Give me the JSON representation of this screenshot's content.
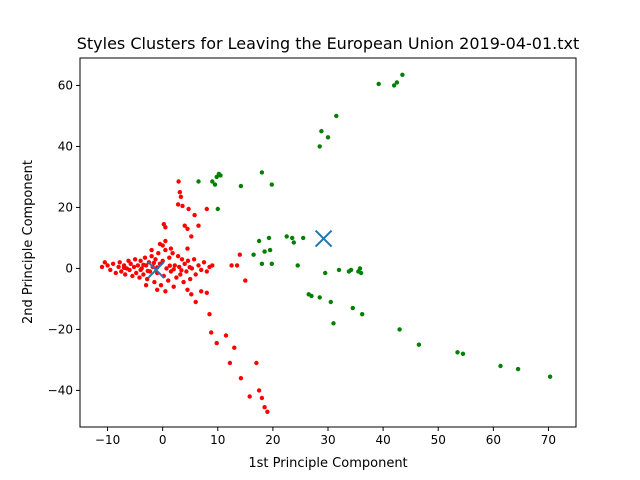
{
  "chart_data": {
    "type": "scatter",
    "title": "Styles Clusters for Leaving the European Union 2019-04-01.txt",
    "xlabel": "1st Principle Component",
    "ylabel": "2nd Principle Component",
    "xlim": [
      -15,
      75
    ],
    "ylim": [
      -52,
      69
    ],
    "xticks": [
      -10,
      0,
      10,
      20,
      30,
      40,
      50,
      60,
      70
    ],
    "yticks": [
      -40,
      -20,
      0,
      20,
      40,
      60
    ],
    "grid": false,
    "legend": "none",
    "colors": {
      "cluster1": "#ff0000",
      "cluster2": "#008000",
      "centroid": "#1f77b4"
    },
    "series": [
      {
        "color": "#ff0000",
        "points": [
          [
            -11,
            0.5
          ],
          [
            -10.5,
            2
          ],
          [
            -10,
            1
          ],
          [
            -9.5,
            -0.5
          ],
          [
            -9,
            1.5
          ],
          [
            -8.5,
            -1.5
          ],
          [
            -8,
            0.5
          ],
          [
            -7.8,
            2
          ],
          [
            -7.5,
            -1
          ],
          [
            -7,
            1
          ],
          [
            -6.8,
            -2
          ],
          [
            -6.5,
            0
          ],
          [
            -6.2,
            2.5
          ],
          [
            -6,
            -0.5
          ],
          [
            -5.8,
            1.5
          ],
          [
            -5.5,
            -2.5
          ],
          [
            -5.2,
            0.5
          ],
          [
            -5,
            3
          ],
          [
            -4.8,
            -1.5
          ],
          [
            -4.5,
            1
          ],
          [
            -4.2,
            -3
          ],
          [
            -4,
            2.5
          ],
          [
            -3.8,
            0
          ],
          [
            -3.5,
            -2
          ],
          [
            -3.2,
            3.5
          ],
          [
            -3,
            1
          ],
          [
            -2.8,
            -3.5
          ],
          [
            -2.5,
            2
          ],
          [
            -2.3,
            -1
          ],
          [
            -2,
            4
          ],
          [
            -1.8,
            0.5
          ],
          [
            -1.5,
            -4.5
          ],
          [
            -1.3,
            3
          ],
          [
            -1,
            -1.5
          ],
          [
            -0.8,
            5
          ],
          [
            -0.5,
            1.5
          ],
          [
            -0.3,
            -5.5
          ],
          [
            0,
            2.5
          ],
          [
            0.2,
            -2.5
          ],
          [
            0.5,
            6
          ],
          [
            0.7,
            0
          ],
          [
            1,
            -4
          ],
          [
            1.2,
            3.5
          ],
          [
            1.5,
            -1
          ],
          [
            1.8,
            5
          ],
          [
            2,
            -6
          ],
          [
            2.2,
            1
          ],
          [
            2.5,
            -3
          ],
          [
            2.8,
            4
          ],
          [
            3,
            0.5
          ],
          [
            3.2,
            -2
          ],
          [
            3.5,
            3
          ],
          [
            3.8,
            -4.5
          ],
          [
            4,
            1.5
          ],
          [
            4.3,
            -1
          ],
          [
            4.6,
            2.5
          ],
          [
            5,
            -3.5
          ],
          [
            5.3,
            0
          ],
          [
            5.7,
            3
          ],
          [
            6,
            -2
          ],
          [
            6.5,
            1
          ],
          [
            7,
            -0.5
          ],
          [
            7.5,
            2
          ],
          [
            8,
            -1
          ],
          [
            8.5,
            0.5
          ],
          [
            9,
            1
          ],
          [
            -7,
            0.2
          ],
          [
            -4,
            -0.5
          ],
          [
            -1,
            0.3
          ],
          [
            2,
            -0.3
          ],
          [
            0,
            7.5
          ],
          [
            0.5,
            9
          ],
          [
            -0.5,
            8
          ],
          [
            1.5,
            6.5
          ],
          [
            -2,
            6
          ],
          [
            -1,
            -7
          ],
          [
            0.5,
            -7.5
          ],
          [
            -3,
            -5.5
          ],
          [
            2.9,
            28.5
          ],
          [
            3.1,
            25
          ],
          [
            3.3,
            23.5
          ],
          [
            2.8,
            21
          ],
          [
            3.6,
            20.5
          ],
          [
            4.7,
            19.5
          ],
          [
            5.8,
            17.5
          ],
          [
            8,
            19.5
          ],
          [
            4,
            14
          ],
          [
            4.5,
            13
          ],
          [
            0.2,
            14.5
          ],
          [
            0.5,
            13.5
          ],
          [
            6.5,
            14
          ],
          [
            5.2,
            10.5
          ],
          [
            4.5,
            6.5
          ],
          [
            4.5,
            -7
          ],
          [
            5.2,
            -8.5
          ],
          [
            6,
            -11
          ],
          [
            7,
            -7.5
          ],
          [
            8,
            -8
          ],
          [
            8.5,
            -15
          ],
          [
            8.8,
            -21
          ],
          [
            9.8,
            -24.5
          ],
          [
            11.5,
            -22
          ],
          [
            12.2,
            -31
          ],
          [
            13,
            -26
          ],
          [
            14.2,
            -36
          ],
          [
            15.8,
            -42
          ],
          [
            17,
            -31
          ],
          [
            17.5,
            -40
          ],
          [
            18,
            -42.5
          ],
          [
            18.5,
            -45.5
          ],
          [
            19,
            -47
          ],
          [
            15,
            -4
          ],
          [
            12.5,
            1
          ],
          [
            13.5,
            1
          ],
          [
            14,
            4.5
          ],
          [
            -3.5,
            1.2
          ],
          [
            -2.7,
            -0.8
          ],
          [
            -1.6,
            1.8
          ],
          [
            1.3,
            0.9
          ],
          [
            3.4,
            -0.6
          ],
          [
            4.9,
            0.4
          ]
        ]
      },
      {
        "color": "#008000",
        "points": [
          [
            6.5,
            28.5
          ],
          [
            9,
            28.5
          ],
          [
            9.5,
            27.5
          ],
          [
            9.8,
            30
          ],
          [
            10.2,
            31
          ],
          [
            10.5,
            30.5
          ],
          [
            14.2,
            27
          ],
          [
            18,
            31.5
          ],
          [
            19.8,
            27.5
          ],
          [
            10,
            19.5
          ],
          [
            16.5,
            4.5
          ],
          [
            17.5,
            9
          ],
          [
            18,
            1.5
          ],
          [
            18.5,
            5.5
          ],
          [
            19.3,
            10
          ],
          [
            19.5,
            6
          ],
          [
            19.8,
            1.5
          ],
          [
            22.5,
            10.5
          ],
          [
            23.5,
            10
          ],
          [
            23.8,
            8.5
          ],
          [
            24.5,
            1
          ],
          [
            25.5,
            10
          ],
          [
            28.5,
            40
          ],
          [
            28.8,
            45
          ],
          [
            30,
            43
          ],
          [
            31.5,
            50
          ],
          [
            39.2,
            60.5
          ],
          [
            42,
            60
          ],
          [
            42.5,
            61
          ],
          [
            43.5,
            63.5
          ],
          [
            29.5,
            -1.5
          ],
          [
            32,
            -0.5
          ],
          [
            33.8,
            -1
          ],
          [
            34.2,
            -0.5
          ],
          [
            35.5,
            -1
          ],
          [
            35.8,
            0
          ],
          [
            36,
            -1.5
          ],
          [
            26.5,
            -8.5
          ],
          [
            27,
            -9
          ],
          [
            28.5,
            -9.5
          ],
          [
            30.5,
            -11
          ],
          [
            31,
            -18
          ],
          [
            34.5,
            -13
          ],
          [
            36.2,
            -15
          ],
          [
            43,
            -20
          ],
          [
            46.5,
            -25
          ],
          [
            53.5,
            -27.5
          ],
          [
            54.5,
            -28
          ],
          [
            61.3,
            -32
          ],
          [
            64.5,
            -33
          ],
          [
            70.3,
            -35.5
          ]
        ]
      }
    ],
    "centroids": [
      {
        "x": -1.2,
        "y": -0.5
      },
      {
        "x": 29.2,
        "y": 9.8
      }
    ]
  }
}
